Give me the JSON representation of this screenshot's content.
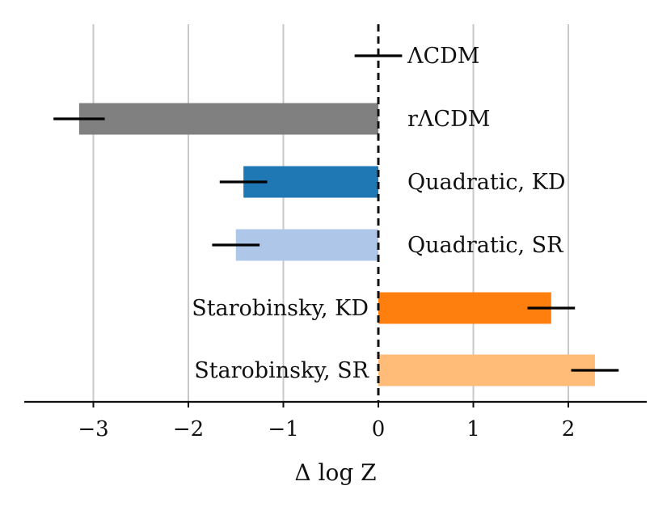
{
  "chart_data": {
    "type": "bar",
    "orientation": "horizontal",
    "title": "",
    "xlabel": "Δ log Z",
    "ylabel": "",
    "xlim": [
      -3.75,
      2.8
    ],
    "xticks": [
      -3,
      -2,
      -1,
      0,
      1,
      2
    ],
    "xtick_labels": [
      "−3",
      "−2",
      "−1",
      "0",
      "1",
      "2"
    ],
    "grid": "vertical",
    "reference_line": 0,
    "categories": [
      "ΛCDM",
      "rΛCDM",
      "Quadratic, KD",
      "Quadratic, SR",
      "Starobinsky, KD",
      "Starobinsky, SR"
    ],
    "values": [
      0.0,
      -3.15,
      -1.42,
      -1.5,
      1.82,
      2.28
    ],
    "errors_low": [
      0.25,
      0.27,
      0.25,
      0.25,
      0.25,
      0.25
    ],
    "errors_high": [
      0.25,
      0.27,
      0.25,
      0.25,
      0.25,
      0.25
    ],
    "colors": [
      "#808080",
      "#808080",
      "#1f77b4",
      "#aec7e8",
      "#ff7f0e",
      "#ffbb78"
    ],
    "error_centers": [
      0.0,
      -3.15,
      -1.42,
      -1.5,
      1.82,
      2.28
    ],
    "error_center_offsets": [
      0,
      0,
      0,
      0,
      0,
      0
    ]
  },
  "colors": {
    "grid": "#c8c8c8",
    "axis": "#111111",
    "errorbar": "#000000"
  }
}
